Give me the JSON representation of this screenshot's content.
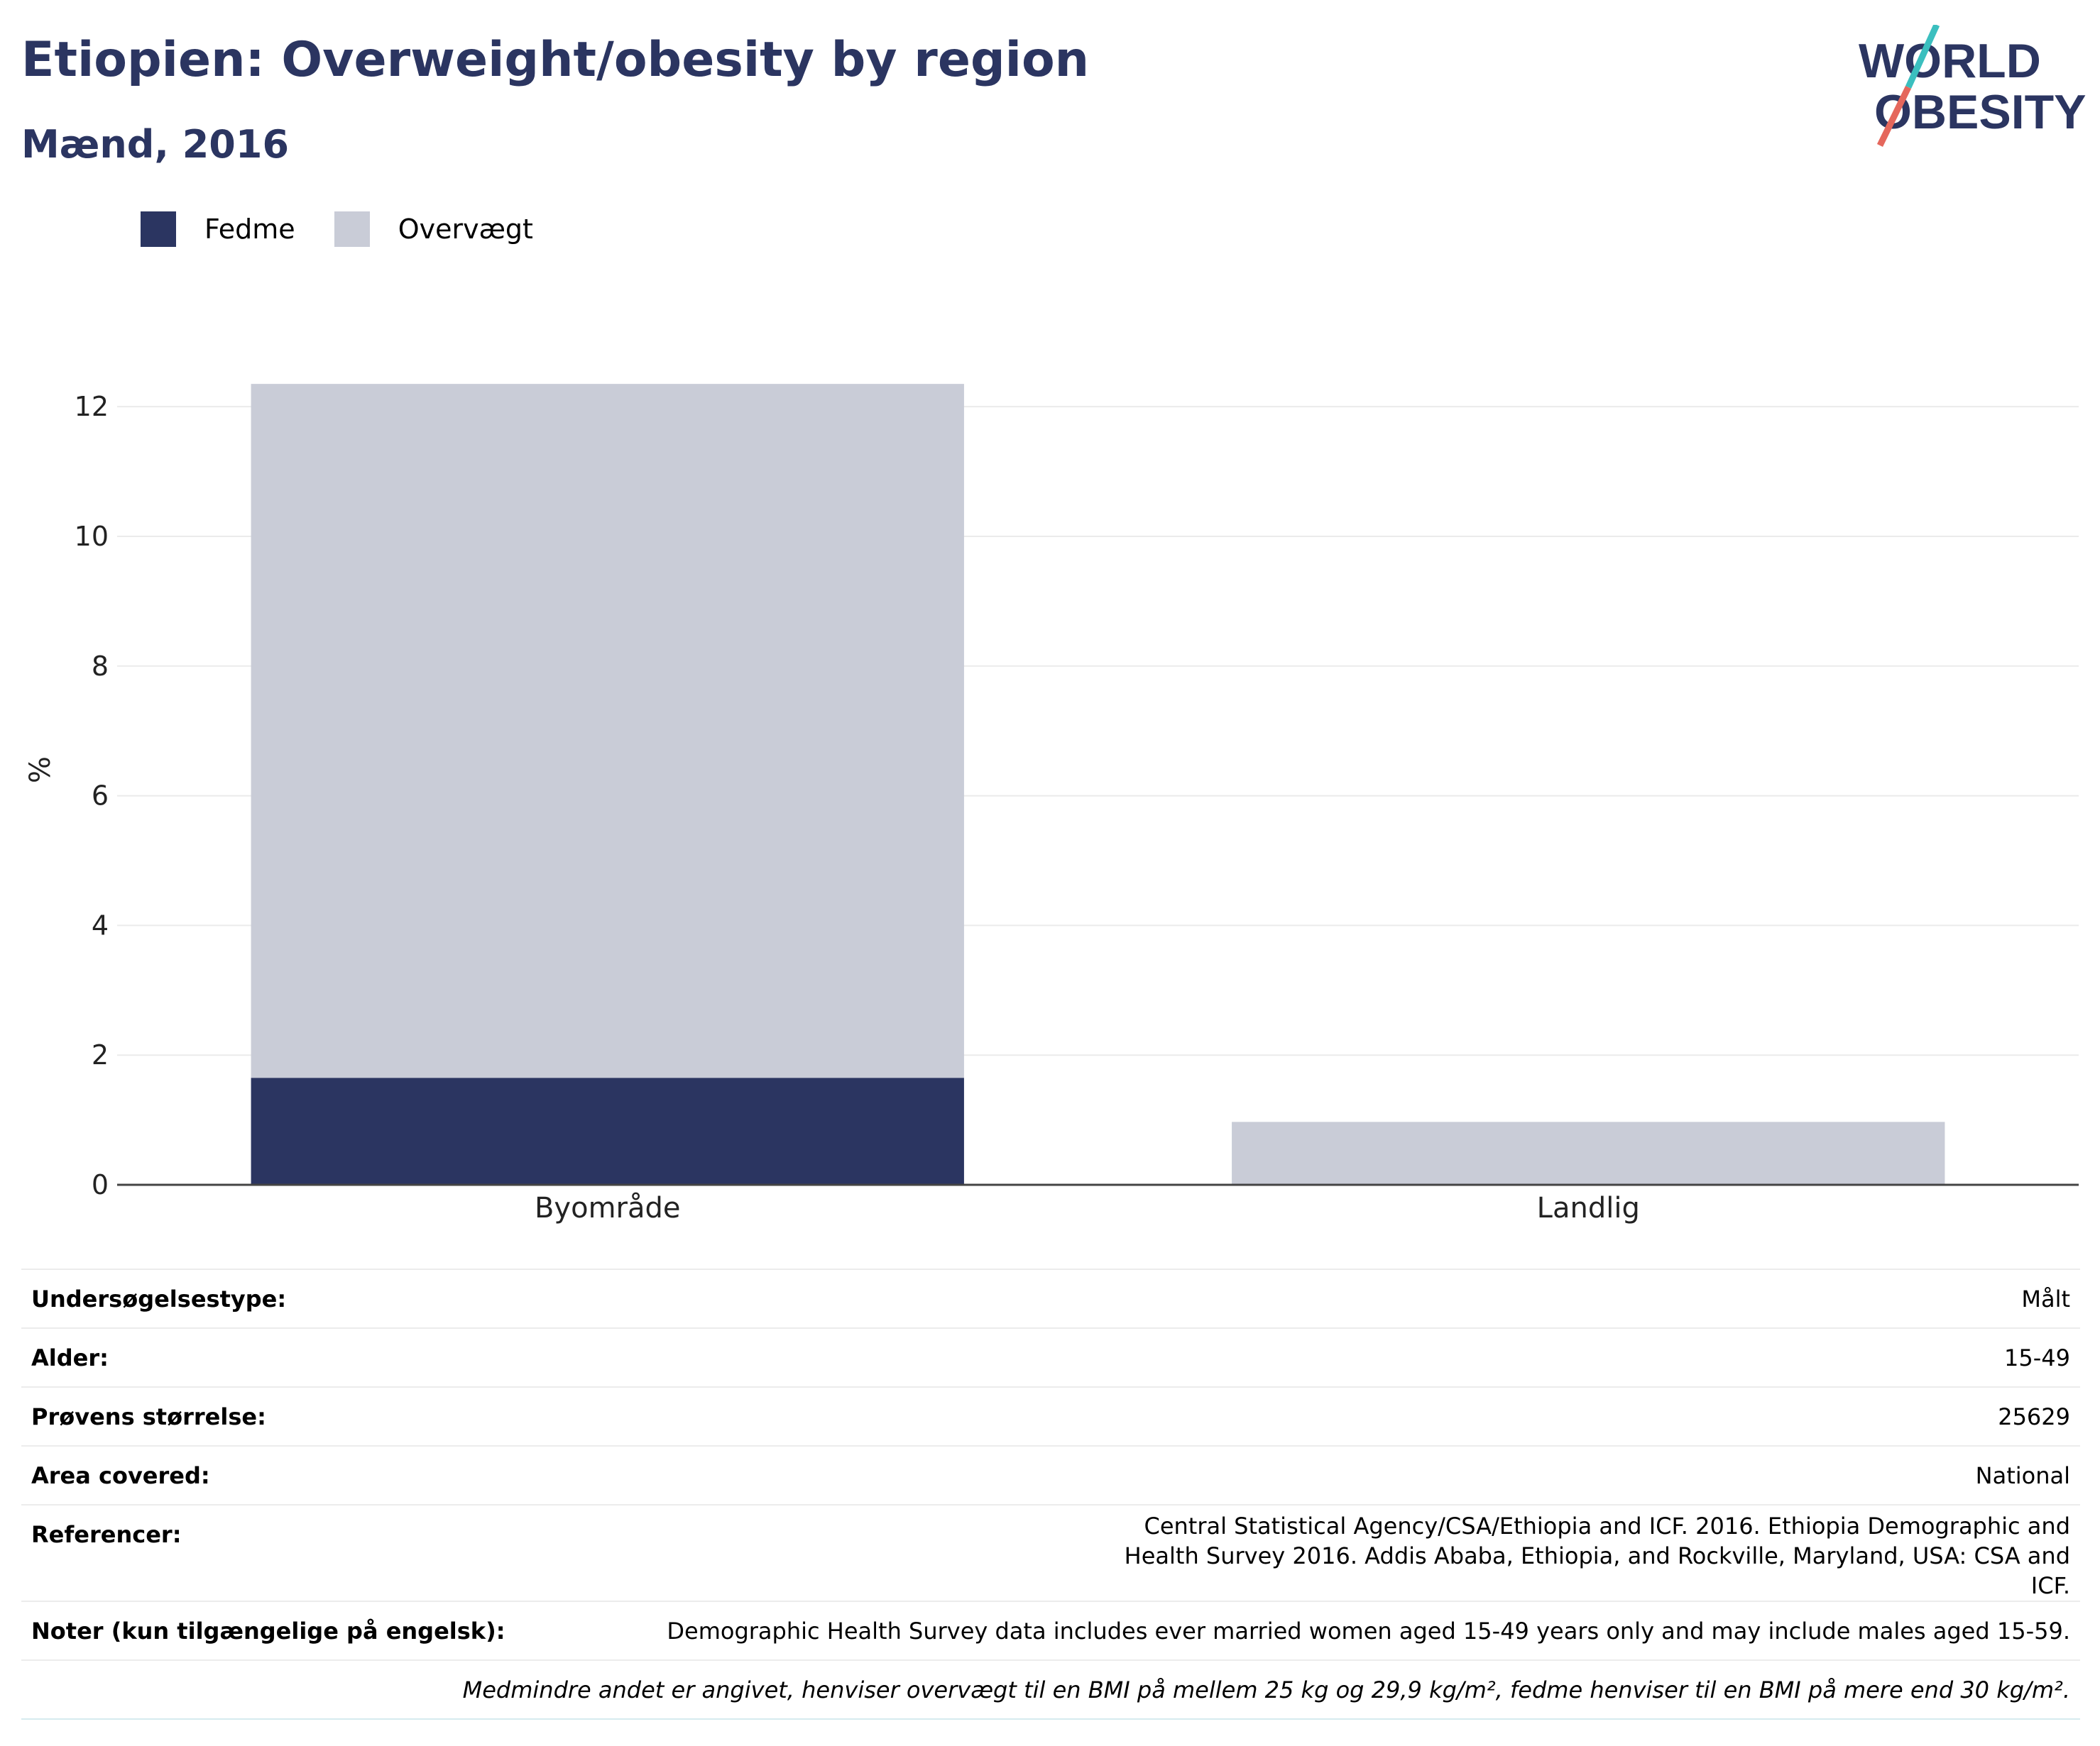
{
  "header": {
    "title": "Etiopien: Overweight/obesity by region",
    "subtitle": "Mænd, 2016"
  },
  "logo": {
    "line1": "WORLD",
    "line2": "OBESITY",
    "accent_teal": "#3bbfbf",
    "accent_red": "#e5675c",
    "text_color": "#2b3561"
  },
  "legend": {
    "items": [
      {
        "label": "Fedme",
        "color": "#2b3561"
      },
      {
        "label": "Overvægt",
        "color": "#c9ccd7"
      }
    ]
  },
  "chart_data": {
    "type": "bar",
    "stacked": true,
    "categories": [
      "Byområde",
      "Landlig"
    ],
    "series": [
      {
        "name": "Fedme",
        "color": "#2b3561",
        "values": [
          1.65,
          0
        ]
      },
      {
        "name": "Overvægt",
        "color": "#c9ccd7",
        "values": [
          10.7,
          0.97
        ]
      }
    ],
    "ylabel": "%",
    "ylim": [
      0,
      12.8
    ],
    "yticks": [
      0,
      2,
      4,
      6,
      8,
      10,
      12
    ],
    "grid": true,
    "legend_position": "top-left"
  },
  "info": {
    "rows": [
      {
        "key": "Undersøgelsestype:",
        "value": "Målt"
      },
      {
        "key": "Alder:",
        "value": "15-49"
      },
      {
        "key": "Prøvens størrelse:",
        "value": "25629"
      },
      {
        "key": "Area covered:",
        "value": "National"
      },
      {
        "key": "Referencer:",
        "value": "Central Statistical Agency/CSA/Ethiopia and ICF. 2016. Ethiopia Demographic and Health Survey 2016. Addis Ababa, Ethiopia, and Rockville, Maryland, USA: CSA and ICF."
      },
      {
        "key": "Noter (kun tilgængelige på engelsk):",
        "value": "Demographic Health Survey data includes ever married women aged 15-49 years only and may include males aged 15-59."
      }
    ],
    "footnote": "Medmindre andet er angivet, henviser overvægt til en BMI på mellem 25 kg og 29,9 kg/m², fedme henviser til en BMI på mere end 30 kg/m²."
  }
}
